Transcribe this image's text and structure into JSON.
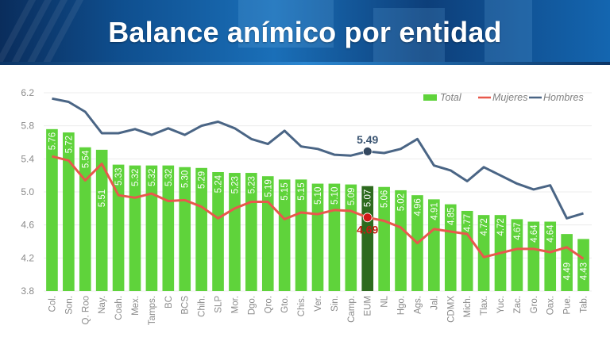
{
  "page": {
    "title": "Balance anímico por entidad"
  },
  "colors": {
    "total": "#5fd33b",
    "highlight": "#2d6a1e",
    "mujeres": "#e8584c",
    "hombres": "#4a6585",
    "grid": "#ececec",
    "axis_text": "#8a8a8a"
  },
  "chart_data": {
    "type": "bar",
    "title": "Balance anímico por entidad",
    "xlabel": "",
    "ylabel": "",
    "ylim": [
      3.8,
      6.2
    ],
    "yticks": [
      "6.2",
      "5.8",
      "5.4",
      "5.0",
      "4.6",
      "4.2",
      "3.8"
    ],
    "ytick_values": [
      6.2,
      5.8,
      5.4,
      5.0,
      4.6,
      4.2,
      3.8
    ],
    "grid": true,
    "legend_position": "top-right",
    "legend": [
      "Total",
      "Mujeres",
      "Hombres"
    ],
    "categories": [
      "Col.",
      "Son.",
      "Q. Roo",
      "Nay.",
      "Coah.",
      "Mex.",
      "Tamps.",
      "BC",
      "BCS",
      "Chih.",
      "SLP",
      "Mor.",
      "Dgo.",
      "Qro.",
      "Gto.",
      "Chis.",
      "Ver.",
      "Sin.",
      "Camp.",
      "EUM",
      "NL",
      "Hgo.",
      "Ags.",
      "Jal.",
      "CDMX",
      "Mich.",
      "Tlax.",
      "Yuc.",
      "Zac.",
      "Gro.",
      "Oax.",
      "Pue.",
      "Tab."
    ],
    "highlight_category": "EUM",
    "series": [
      {
        "name": "Total",
        "type": "bar",
        "values": [
          5.76,
          5.72,
          5.54,
          5.51,
          5.33,
          5.32,
          5.32,
          5.32,
          5.3,
          5.29,
          5.24,
          5.23,
          5.23,
          5.19,
          5.15,
          5.15,
          5.1,
          5.1,
          5.09,
          5.07,
          5.06,
          5.02,
          4.96,
          4.91,
          4.85,
          4.77,
          4.72,
          4.72,
          4.67,
          4.64,
          4.64,
          4.49,
          4.43
        ],
        "labels": [
          "5.76",
          "5.72",
          "5.54",
          "5.51",
          "5.33",
          "5.32",
          "5.32",
          "5.32",
          "5.30",
          "5.29",
          "5.24",
          "5.23",
          "5.23",
          "5.19",
          "5.15",
          "5.15",
          "5.10",
          "5.10",
          "5.09",
          "5.07",
          "5.06",
          "5.02",
          "4.96",
          "4.91",
          "4.85",
          "4.77",
          "4.72",
          "4.72",
          "4.67",
          "4.64",
          "4.64",
          "4.49",
          "4.43"
        ]
      },
      {
        "name": "Mujeres",
        "type": "line",
        "values": [
          5.43,
          5.38,
          5.14,
          5.34,
          4.96,
          4.93,
          4.98,
          4.89,
          4.9,
          4.82,
          4.68,
          4.8,
          4.88,
          4.88,
          4.67,
          4.75,
          4.73,
          4.78,
          4.77,
          4.69,
          4.65,
          4.57,
          4.38,
          4.55,
          4.52,
          4.49,
          4.21,
          4.26,
          4.31,
          4.31,
          4.27,
          4.33,
          4.19
        ]
      },
      {
        "name": "Hombres",
        "type": "line",
        "values": [
          6.13,
          6.09,
          5.97,
          5.71,
          5.71,
          5.76,
          5.69,
          5.77,
          5.69,
          5.8,
          5.85,
          5.77,
          5.64,
          5.58,
          5.74,
          5.55,
          5.52,
          5.45,
          5.44,
          5.49,
          5.47,
          5.52,
          5.64,
          5.32,
          5.26,
          5.13,
          5.3,
          5.2,
          5.1,
          5.03,
          5.08,
          4.68,
          4.74
        ]
      }
    ],
    "annotations": [
      {
        "series": "Hombres",
        "category": "EUM",
        "text": "5.49"
      },
      {
        "series": "Mujeres",
        "category": "EUM",
        "text": "4.69"
      }
    ]
  }
}
